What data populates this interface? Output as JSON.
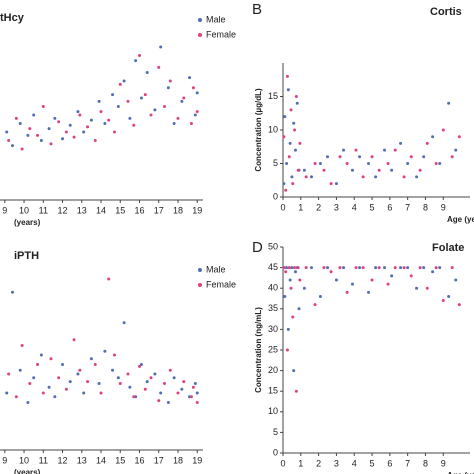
{
  "chart_data": [
    {
      "type": "scatter",
      "title": "tHcy",
      "xlabel": "(years)",
      "xlim": [
        8.75,
        19.3
      ],
      "xticks": [
        9,
        10,
        11,
        12,
        13,
        14,
        15,
        16,
        17,
        18,
        19
      ],
      "ylim": [
        0,
        100
      ],
      "legend": "upper right",
      "series": [
        {
          "name": "Male",
          "color": "#4f6fb3",
          "x": [
            9.1,
            9.4,
            9.8,
            10.2,
            10.5,
            10.9,
            11.3,
            11.6,
            12.0,
            12.4,
            12.8,
            13.1,
            13.5,
            13.9,
            14.2,
            14.6,
            14.9,
            15.2,
            15.5,
            15.8,
            16.1,
            16.4,
            16.8,
            17.1,
            17.5,
            17.8,
            18.2,
            18.6,
            18.9,
            19.0
          ],
          "values": [
            40,
            32,
            45,
            38,
            50,
            35,
            42,
            48,
            36,
            44,
            52,
            40,
            47,
            58,
            45,
            62,
            55,
            70,
            48,
            82,
            60,
            75,
            53,
            90,
            66,
            45,
            58,
            72,
            50,
            63
          ]
        },
        {
          "name": "Female",
          "color": "#e0407f",
          "x": [
            9.2,
            9.6,
            9.9,
            10.3,
            10.7,
            11.0,
            11.4,
            11.8,
            12.2,
            12.6,
            12.9,
            13.3,
            13.7,
            14.0,
            14.4,
            14.7,
            15.0,
            15.4,
            15.7,
            16.0,
            16.3,
            16.6,
            17.0,
            17.3,
            17.6,
            18.0,
            18.3,
            18.7,
            18.8,
            19.0
          ],
          "values": [
            35,
            48,
            30,
            42,
            38,
            55,
            33,
            46,
            40,
            37,
            50,
            43,
            35,
            52,
            47,
            40,
            68,
            58,
            44,
            85,
            62,
            50,
            78,
            55,
            70,
            48,
            60,
            45,
            66,
            52
          ]
        }
      ]
    },
    {
      "type": "scatter",
      "panel": "B",
      "title": "Cortis",
      "xlabel": "Age (ye",
      "ylabel": "Concentration (µg/dL)",
      "xlim": [
        0,
        10.5
      ],
      "xticks": [
        0,
        1,
        2,
        3,
        4,
        5,
        6,
        7,
        8,
        9
      ],
      "ylim": [
        0,
        20
      ],
      "yticks": [
        0,
        5,
        10,
        15
      ],
      "series": [
        {
          "color": "#4f6fb3",
          "x": [
            0.05,
            0.1,
            0.2,
            0.3,
            0.4,
            0.5,
            0.6,
            0.7,
            0.8,
            0.9,
            1.2,
            1.6,
            2.1,
            2.5,
            3.0,
            3.4,
            3.9,
            4.3,
            4.8,
            5.2,
            5.7,
            6.1,
            6.6,
            7.0,
            7.5,
            7.9,
            8.4,
            8.8,
            9.3,
            9.7
          ],
          "values": [
            2,
            12,
            5,
            16,
            8,
            3,
            11,
            7,
            14,
            4,
            4,
            3,
            5,
            6,
            2,
            7,
            4,
            6,
            5,
            3,
            7,
            4,
            8,
            5,
            3,
            6,
            9,
            5,
            14,
            7
          ]
        },
        {
          "color": "#e0407f",
          "x": [
            0.05,
            0.15,
            0.25,
            0.35,
            0.45,
            0.55,
            0.65,
            0.75,
            0.85,
            0.95,
            1.3,
            1.8,
            2.3,
            2.7,
            3.2,
            3.6,
            4.1,
            4.5,
            5.0,
            5.4,
            5.9,
            6.3,
            6.8,
            7.2,
            7.7,
            8.1,
            8.6,
            9.0,
            9.5,
            9.9
          ],
          "values": [
            9,
            1,
            18,
            6,
            13,
            2,
            10,
            15,
            4,
            8,
            3,
            5,
            4,
            2,
            6,
            5,
            7,
            3,
            6,
            4,
            5,
            7,
            3,
            6,
            4,
            8,
            5,
            10,
            6,
            9
          ]
        }
      ]
    },
    {
      "type": "scatter",
      "title": "iPTH",
      "xlabel": "(years)",
      "xlim": [
        8.75,
        19.3
      ],
      "xticks": [
        9,
        10,
        11,
        12,
        13,
        14,
        15,
        16,
        17,
        18,
        19
      ],
      "ylim": [
        0,
        100
      ],
      "legend": "upper right",
      "series": [
        {
          "name": "Male",
          "color": "#4f6fb3",
          "x": [
            9.1,
            9.4,
            9.8,
            10.2,
            10.5,
            10.9,
            11.3,
            11.6,
            12.0,
            12.4,
            12.8,
            13.1,
            13.5,
            13.9,
            14.2,
            14.6,
            14.9,
            15.2,
            15.5,
            15.8,
            16.1,
            16.4,
            16.8,
            17.1,
            17.5,
            17.8,
            18.2,
            18.6,
            18.9,
            19.0
          ],
          "values": [
            30,
            83,
            42,
            25,
            38,
            50,
            33,
            28,
            45,
            36,
            40,
            30,
            48,
            35,
            52,
            42,
            38,
            67,
            33,
            28,
            45,
            36,
            40,
            30,
            25,
            38,
            32,
            28,
            35,
            30
          ]
        },
        {
          "name": "Female",
          "color": "#e0407f",
          "x": [
            9.2,
            9.6,
            9.9,
            10.3,
            10.7,
            11.0,
            11.4,
            11.8,
            12.2,
            12.6,
            12.9,
            13.3,
            13.7,
            14.0,
            14.4,
            14.7,
            15.0,
            15.4,
            15.7,
            16.0,
            16.3,
            16.6,
            17.0,
            17.3,
            17.6,
            18.0,
            18.3,
            18.7,
            18.8,
            19.0
          ],
          "values": [
            40,
            28,
            55,
            35,
            45,
            30,
            48,
            38,
            32,
            58,
            42,
            36,
            45,
            30,
            90,
            50,
            35,
            40,
            28,
            44,
            32,
            38,
            26,
            35,
            42,
            30,
            36,
            28,
            33,
            25
          ]
        }
      ]
    },
    {
      "type": "scatter",
      "panel": "D",
      "title": "Folate",
      "xlabel": "Age (ye",
      "ylabel": "Concentration (ng/mL)",
      "xlim": [
        0,
        10.5
      ],
      "xticks": [
        0,
        1,
        2,
        3,
        4,
        5,
        6,
        7,
        8,
        9
      ],
      "ylim": [
        0,
        50
      ],
      "yticks": [
        0,
        5,
        10,
        15,
        20,
        25,
        30,
        35,
        40,
        45,
        50
      ],
      "series": [
        {
          "color": "#4f6fb3",
          "x": [
            0.05,
            0.1,
            0.2,
            0.3,
            0.4,
            0.5,
            0.6,
            0.7,
            0.8,
            0.9,
            1.2,
            1.6,
            2.1,
            2.5,
            3.0,
            3.4,
            3.9,
            4.3,
            4.8,
            5.2,
            5.7,
            6.1,
            6.6,
            7.0,
            7.5,
            7.9,
            8.4,
            8.8,
            9.3,
            9.7
          ],
          "values": [
            45,
            38,
            45,
            30,
            42,
            45,
            20,
            44,
            45,
            35,
            40,
            45,
            38,
            45,
            42,
            45,
            41,
            45,
            39,
            45,
            45,
            43,
            45,
            45,
            40,
            45,
            44,
            45,
            38,
            42
          ]
        },
        {
          "color": "#e0407f",
          "x": [
            0.05,
            0.15,
            0.25,
            0.35,
            0.45,
            0.55,
            0.65,
            0.75,
            0.85,
            0.95,
            1.3,
            1.8,
            2.3,
            2.7,
            3.2,
            3.6,
            4.1,
            4.5,
            5.0,
            5.4,
            5.9,
            6.3,
            6.8,
            7.2,
            7.7,
            8.1,
            8.6,
            9.0,
            9.5,
            9.9
          ],
          "values": [
            45,
            44,
            25,
            45,
            40,
            33,
            45,
            15,
            45,
            42,
            45,
            36,
            45,
            44,
            45,
            39,
            45,
            45,
            42,
            45,
            41,
            45,
            45,
            43,
            45,
            40,
            45,
            37,
            45,
            36
          ]
        }
      ]
    }
  ]
}
